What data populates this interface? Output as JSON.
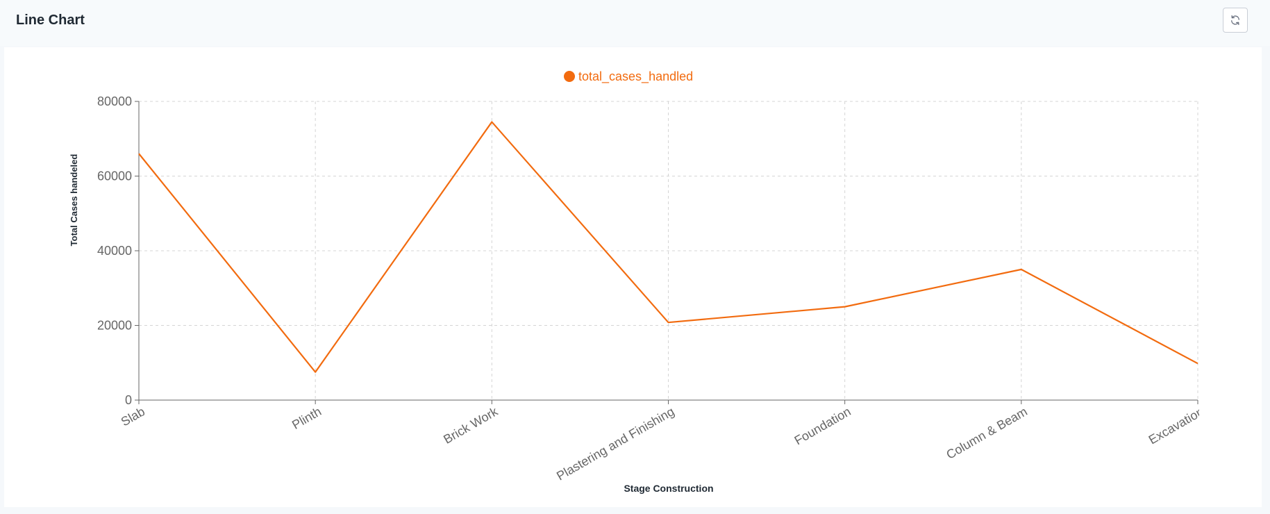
{
  "header": {
    "title": "Line Chart",
    "refresh_icon": "refresh-icon"
  },
  "chart_data": {
    "type": "line",
    "categories": [
      "Slab",
      "Plinth",
      "Brick Work",
      "Plastering and Finishing",
      "Foundation",
      "Column & Beam",
      "Excavation"
    ],
    "series": [
      {
        "name": "total_cases_handled",
        "values": [
          66000,
          7500,
          74500,
          20800,
          25000,
          35000,
          9800
        ],
        "color": "#f26b0f"
      }
    ],
    "xlabel": "Stage Construction",
    "ylabel": "Total Cases handeled",
    "ylim": [
      0,
      80000
    ],
    "yticks": [
      0,
      20000,
      40000,
      60000,
      80000
    ],
    "grid": true,
    "legend": "top-center"
  }
}
